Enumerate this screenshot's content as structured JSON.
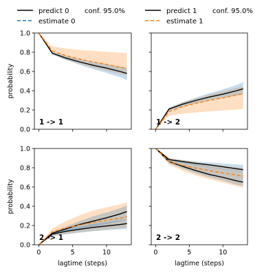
{
  "colors": {
    "predict": "#000000",
    "estimate": "#ff7f0e",
    "conf_band": "#1f77b4",
    "est_band": "#ff7f0e"
  },
  "legend": {
    "group0": {
      "predict": "predict 0",
      "conf": "conf. 95.0%",
      "estimate": "estimate 0"
    },
    "group1": {
      "predict": "predict 1",
      "conf": "conf. 95.0%",
      "estimate": "estimate 1"
    }
  },
  "axes": {
    "ylabel": "probability",
    "xlabel": "lagtime (steps)",
    "x_ticks": [
      "0",
      "5",
      "10"
    ],
    "y_ticks": [
      "0.0",
      "0.2",
      "0.4",
      "0.6",
      "0.8",
      "1.0"
    ]
  },
  "chart_data": {
    "type": "line",
    "xlim": [
      -0.65,
      13.65
    ],
    "ylim": [
      0,
      1
    ],
    "x": [
      0,
      2,
      4,
      6,
      8,
      10,
      12,
      13
    ],
    "panels": [
      {
        "label": "1 -> 1",
        "predict": [
          1.0,
          0.79,
          0.74,
          0.7,
          0.665,
          0.635,
          0.6,
          0.58
        ],
        "predict_low": [
          1.0,
          0.775,
          0.72,
          0.67,
          0.625,
          0.585,
          0.54,
          0.51
        ],
        "predict_high": [
          1.0,
          0.805,
          0.765,
          0.73,
          0.7,
          0.675,
          0.65,
          0.64
        ],
        "estimate": [
          1.0,
          0.815,
          0.765,
          0.73,
          0.7,
          0.675,
          0.645,
          0.63
        ],
        "estimate_low": [
          1.0,
          0.78,
          0.72,
          0.68,
          0.64,
          0.605,
          0.575,
          0.56
        ],
        "estimate_high": [
          1.0,
          0.86,
          0.84,
          0.825,
          0.815,
          0.805,
          0.795,
          0.79
        ]
      },
      {
        "label": "1 -> 2",
        "predict": [
          0.0,
          0.21,
          0.26,
          0.3,
          0.335,
          0.365,
          0.4,
          0.42
        ],
        "predict_low": [
          0.0,
          0.195,
          0.235,
          0.27,
          0.3,
          0.325,
          0.35,
          0.36
        ],
        "predict_high": [
          0.0,
          0.225,
          0.28,
          0.33,
          0.375,
          0.415,
          0.46,
          0.49
        ],
        "estimate": [
          0.0,
          0.185,
          0.235,
          0.27,
          0.3,
          0.325,
          0.355,
          0.37
        ],
        "estimate_low": [
          0.0,
          0.14,
          0.16,
          0.175,
          0.185,
          0.195,
          0.205,
          0.21
        ],
        "estimate_high": [
          0.0,
          0.22,
          0.28,
          0.32,
          0.36,
          0.395,
          0.43,
          0.44
        ]
      },
      {
        "label": "2 -> 1",
        "predict": [
          0.0,
          0.12,
          0.165,
          0.21,
          0.245,
          0.28,
          0.32,
          0.345
        ],
        "predict_low": [
          0.0,
          0.105,
          0.135,
          0.165,
          0.19,
          0.215,
          0.245,
          0.26
        ],
        "predict_high": [
          0.0,
          0.135,
          0.19,
          0.245,
          0.295,
          0.335,
          0.38,
          0.41
        ],
        "estimate": [
          0.0,
          0.135,
          0.175,
          0.205,
          0.23,
          0.255,
          0.275,
          0.29
        ],
        "estimate_low": [
          0.0,
          0.09,
          0.11,
          0.13,
          0.145,
          0.16,
          0.17,
          0.18
        ],
        "estimate_high": [
          0.0,
          0.17,
          0.245,
          0.305,
          0.355,
          0.39,
          0.42,
          0.44
        ],
        "predict_b": [
          0.0,
          0.11,
          0.14,
          0.16,
          0.18,
          0.195,
          0.21,
          0.22
        ],
        "predict_b_low": [
          0.0,
          0.09,
          0.11,
          0.125,
          0.14,
          0.15,
          0.16,
          0.165
        ],
        "predict_b_high": [
          0.0,
          0.125,
          0.165,
          0.19,
          0.215,
          0.235,
          0.255,
          0.265
        ]
      },
      {
        "label": "2 -> 2",
        "predict": [
          1.0,
          0.865,
          0.815,
          0.77,
          0.73,
          0.7,
          0.665,
          0.65
        ],
        "predict_low": [
          1.0,
          0.845,
          0.79,
          0.74,
          0.7,
          0.665,
          0.625,
          0.61
        ],
        "predict_high": [
          1.0,
          0.89,
          0.86,
          0.83,
          0.81,
          0.79,
          0.77,
          0.76
        ],
        "estimate": [
          1.0,
          0.865,
          0.825,
          0.795,
          0.77,
          0.745,
          0.725,
          0.71
        ],
        "estimate_low": [
          1.0,
          0.83,
          0.77,
          0.72,
          0.68,
          0.645,
          0.61,
          0.59
        ],
        "estimate_high": [
          1.0,
          0.905,
          0.88,
          0.855,
          0.835,
          0.82,
          0.805,
          0.8
        ],
        "conf_line": [
          1.0,
          0.885,
          0.865,
          0.845,
          0.83,
          0.81,
          0.79,
          0.78
        ],
        "conf_low": [
          1.0,
          0.875,
          0.85,
          0.825,
          0.805,
          0.785,
          0.765,
          0.755
        ],
        "conf_high": [
          1.0,
          0.895,
          0.88,
          0.865,
          0.855,
          0.845,
          0.835,
          0.83
        ]
      }
    ]
  }
}
